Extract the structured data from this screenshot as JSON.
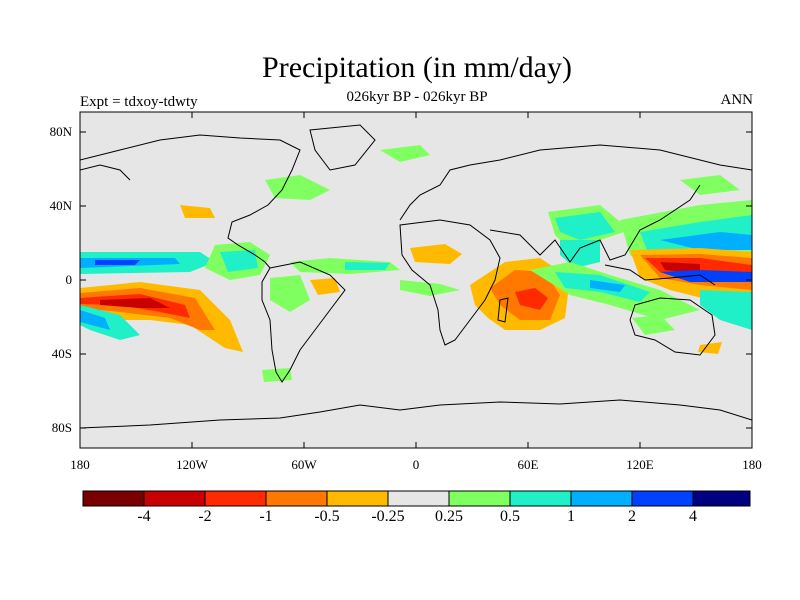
{
  "title": "Precipitation (in mm/day)",
  "subtitle": "026kyr BP - 026kyr BP",
  "left_label": "Expt = tdxoy-tdwty",
  "right_label": "ANN",
  "lat_ticks": [
    "80N",
    "40N",
    "0",
    "40S",
    "80S"
  ],
  "lon_ticks": [
    "180",
    "120W",
    "60W",
    "0",
    "60E",
    "120E",
    "180"
  ],
  "colorbar": {
    "labels": [
      "-4",
      "-2",
      "-1",
      "-0.5",
      "-0.25",
      "0.25",
      "0.5",
      "1",
      "2",
      "4"
    ],
    "colors": [
      "#7a0000",
      "#c80000",
      "#ff2a00",
      "#ff7800",
      "#ffba00",
      "#e6e6e6",
      "#80ff60",
      "#20f0c8",
      "#00b0ff",
      "#0040ff",
      "#000080"
    ]
  }
}
